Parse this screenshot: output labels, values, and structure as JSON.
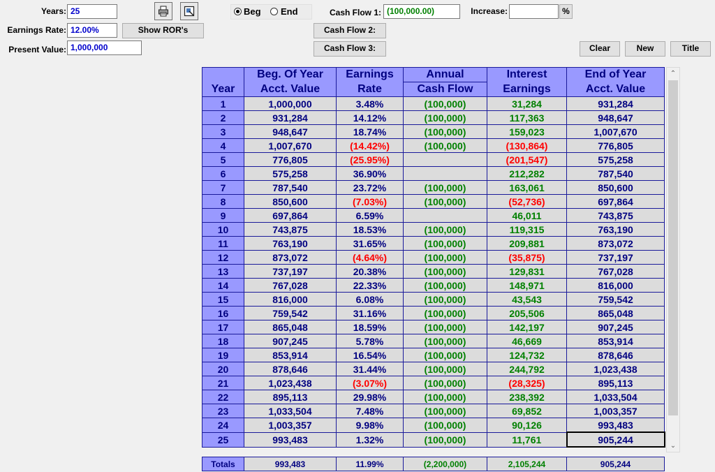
{
  "inputs": {
    "years_label": "Years:",
    "years_value": "25",
    "earnings_rate_label": "Earnings Rate:",
    "earnings_rate_value": "12.00%",
    "present_value_label": "Present Value:",
    "present_value_value": "1,000,000",
    "show_rors_label": "Show ROR's"
  },
  "timing": {
    "beg_label": "Beg",
    "end_label": "End",
    "selected": "Beg"
  },
  "cashflow": {
    "cf1_label": "Cash Flow 1:",
    "cf1_value": "(100,000.00)",
    "cf2_label": "Cash Flow 2:",
    "cf3_label": "Cash Flow 3:",
    "increase_label": "Increase:",
    "increase_value": "",
    "percent_label": "%"
  },
  "actions": {
    "clear_label": "Clear",
    "new_label": "New",
    "title_label": "Title"
  },
  "icons": {
    "print": "printer-icon",
    "preview": "preview-icon"
  },
  "colors": {
    "header_bg": "#9999ff",
    "cell_bg": "#dcdcdc",
    "navy_text": "#000080",
    "green_text": "#008000",
    "red_text": "#ff0000"
  },
  "table": {
    "headers": {
      "year": "Year",
      "beg_line1": "Beg. Of Year",
      "beg_line2": "Acct. Value",
      "rate_line1": "Earnings",
      "rate_line2": "Rate",
      "cf_line1": "Annual",
      "cf_line2": "Cash Flow",
      "int_line1": "Interest",
      "int_line2": "Earnings",
      "end_line1": "End of Year",
      "end_line2": "Acct. Value"
    },
    "rows": [
      {
        "year": "1",
        "beg": "1,000,000",
        "rate": "3.48%",
        "cf": "(100,000)",
        "interest": "31,284",
        "end": "931,284"
      },
      {
        "year": "2",
        "beg": "931,284",
        "rate": "14.12%",
        "cf": "(100,000)",
        "interest": "117,363",
        "end": "948,647"
      },
      {
        "year": "3",
        "beg": "948,647",
        "rate": "18.74%",
        "cf": "(100,000)",
        "interest": "159,023",
        "end": "1,007,670"
      },
      {
        "year": "4",
        "beg": "1,007,670",
        "rate": "(14.42%)",
        "cf": "(100,000)",
        "interest": "(130,864)",
        "end": "776,805"
      },
      {
        "year": "5",
        "beg": "776,805",
        "rate": "(25.95%)",
        "cf": "",
        "interest": "(201,547)",
        "end": "575,258"
      },
      {
        "year": "6",
        "beg": "575,258",
        "rate": "36.90%",
        "cf": "",
        "interest": "212,282",
        "end": "787,540"
      },
      {
        "year": "7",
        "beg": "787,540",
        "rate": "23.72%",
        "cf": "(100,000)",
        "interest": "163,061",
        "end": "850,600"
      },
      {
        "year": "8",
        "beg": "850,600",
        "rate": "(7.03%)",
        "cf": "(100,000)",
        "interest": "(52,736)",
        "end": "697,864"
      },
      {
        "year": "9",
        "beg": "697,864",
        "rate": "6.59%",
        "cf": "",
        "interest": "46,011",
        "end": "743,875"
      },
      {
        "year": "10",
        "beg": "743,875",
        "rate": "18.53%",
        "cf": "(100,000)",
        "interest": "119,315",
        "end": "763,190"
      },
      {
        "year": "11",
        "beg": "763,190",
        "rate": "31.65%",
        "cf": "(100,000)",
        "interest": "209,881",
        "end": "873,072"
      },
      {
        "year": "12",
        "beg": "873,072",
        "rate": "(4.64%)",
        "cf": "(100,000)",
        "interest": "(35,875)",
        "end": "737,197"
      },
      {
        "year": "13",
        "beg": "737,197",
        "rate": "20.38%",
        "cf": "(100,000)",
        "interest": "129,831",
        "end": "767,028"
      },
      {
        "year": "14",
        "beg": "767,028",
        "rate": "22.33%",
        "cf": "(100,000)",
        "interest": "148,971",
        "end": "816,000"
      },
      {
        "year": "15",
        "beg": "816,000",
        "rate": "6.08%",
        "cf": "(100,000)",
        "interest": "43,543",
        "end": "759,542"
      },
      {
        "year": "16",
        "beg": "759,542",
        "rate": "31.16%",
        "cf": "(100,000)",
        "interest": "205,506",
        "end": "865,048"
      },
      {
        "year": "17",
        "beg": "865,048",
        "rate": "18.59%",
        "cf": "(100,000)",
        "interest": "142,197",
        "end": "907,245"
      },
      {
        "year": "18",
        "beg": "907,245",
        "rate": "5.78%",
        "cf": "(100,000)",
        "interest": "46,669",
        "end": "853,914"
      },
      {
        "year": "19",
        "beg": "853,914",
        "rate": "16.54%",
        "cf": "(100,000)",
        "interest": "124,732",
        "end": "878,646"
      },
      {
        "year": "20",
        "beg": "878,646",
        "rate": "31.44%",
        "cf": "(100,000)",
        "interest": "244,792",
        "end": "1,023,438"
      },
      {
        "year": "21",
        "beg": "1,023,438",
        "rate": "(3.07%)",
        "cf": "(100,000)",
        "interest": "(28,325)",
        "end": "895,113"
      },
      {
        "year": "22",
        "beg": "895,113",
        "rate": "29.98%",
        "cf": "(100,000)",
        "interest": "238,392",
        "end": "1,033,504"
      },
      {
        "year": "23",
        "beg": "1,033,504",
        "rate": "7.48%",
        "cf": "(100,000)",
        "interest": "69,852",
        "end": "1,003,357"
      },
      {
        "year": "24",
        "beg": "1,003,357",
        "rate": "9.98%",
        "cf": "(100,000)",
        "interest": "90,126",
        "end": "993,483"
      },
      {
        "year": "25",
        "beg": "993,483",
        "rate": "1.32%",
        "cf": "(100,000)",
        "interest": "11,761",
        "end": "905,244"
      }
    ],
    "totals": {
      "label": "Totals",
      "beg": "993,483",
      "rate": "11.99%",
      "cf": "(2,200,000)",
      "interest": "2,105,244",
      "end": "905,244"
    }
  }
}
